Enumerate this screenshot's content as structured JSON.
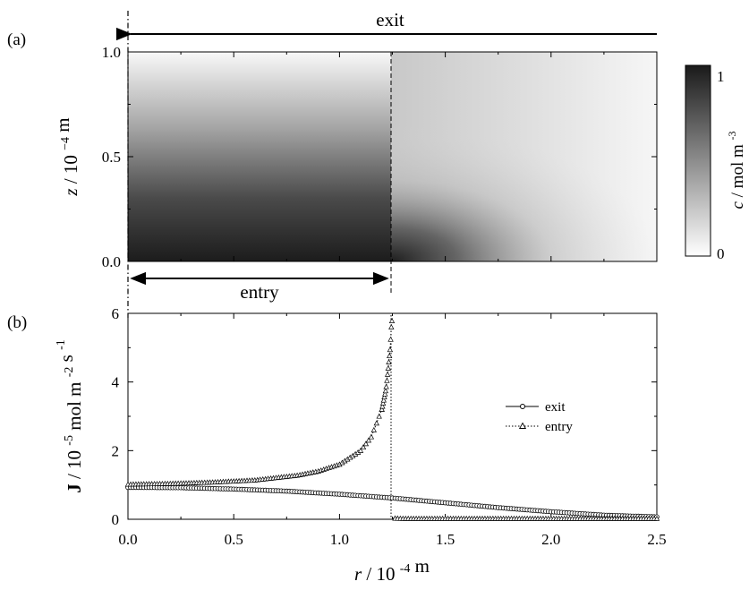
{
  "chart_data": [
    {
      "panel_label": "(a)",
      "type": "heatmap",
      "description_free": true,
      "x_range": [
        0,
        2.5
      ],
      "ylabel_var": "z",
      "ylabel_unit": "10",
      "ylabel_exp": "−4",
      "ylabel_tail": "m",
      "ylim": [
        0,
        1.0
      ],
      "yticks": [
        {
          "value": 0.0,
          "label": "0.0"
        },
        {
          "value": 0.5,
          "label": "0.5"
        },
        {
          "value": 1.0,
          "label": "1.0"
        }
      ],
      "colorbar": {
        "label_var": "c",
        "label_unit": "mol m",
        "label_exp": "-3",
        "min": 0,
        "max": 1,
        "min_label": "0",
        "max_label": "1",
        "color_low": "#ffffff",
        "color_high": "#1a1a1a"
      },
      "annotations": {
        "exit_label": "exit",
        "exit_span": [
          0,
          2.5
        ],
        "entry_label": "entry",
        "entry_span": [
          0,
          1.25
        ],
        "boundary_r": 1.25
      }
    },
    {
      "panel_label": "(b)",
      "type": "line",
      "xlabel_var": "r",
      "xlabel_unit": "10",
      "xlabel_exp": "-4",
      "xlabel_tail": "m",
      "ylabel_var": "J",
      "ylabel_unit": "10",
      "ylabel_exp1": "-5",
      "ylabel_mid": "mol m",
      "ylabel_exp2": "-2",
      "ylabel_tail": "s",
      "ylabel_exp3": "-1",
      "xlim": [
        0,
        2.5
      ],
      "ylim": [
        0,
        6
      ],
      "xticks": [
        {
          "value": 0.0,
          "label": "0.0"
        },
        {
          "value": 0.5,
          "label": "0.5"
        },
        {
          "value": 1.0,
          "label": "1.0"
        },
        {
          "value": 1.5,
          "label": "1.5"
        },
        {
          "value": 2.0,
          "label": "2.0"
        },
        {
          "value": 2.5,
          "label": "2.5"
        }
      ],
      "yticks": [
        {
          "value": 0,
          "label": "0"
        },
        {
          "value": 2,
          "label": "2"
        },
        {
          "value": 4,
          "label": "4"
        },
        {
          "value": 6,
          "label": "6"
        }
      ],
      "legend_position": "center-right",
      "series": [
        {
          "name": "exit",
          "marker": "circle",
          "line": "solid",
          "x": [
            0.0,
            0.25,
            0.5,
            0.75,
            1.0,
            1.25,
            1.5,
            1.75,
            2.0,
            2.25,
            2.5
          ],
          "y": [
            0.93,
            0.92,
            0.88,
            0.82,
            0.73,
            0.62,
            0.48,
            0.34,
            0.22,
            0.12,
            0.07
          ]
        },
        {
          "name": "entry",
          "marker": "triangle",
          "line": "dotted",
          "x": [
            0.0,
            0.2,
            0.4,
            0.6,
            0.8,
            0.9,
            1.0,
            1.1,
            1.15,
            1.2,
            1.22,
            1.24,
            1.245,
            1.25,
            1.25,
            1.3,
            1.5,
            1.75,
            2.0,
            2.25,
            2.5
          ],
          "y": [
            1.02,
            1.04,
            1.08,
            1.14,
            1.28,
            1.4,
            1.6,
            2.0,
            2.4,
            3.2,
            3.8,
            5.0,
            5.6,
            5.9,
            0.03,
            0.02,
            0.02,
            0.02,
            0.02,
            0.02,
            0.02
          ]
        }
      ]
    }
  ]
}
